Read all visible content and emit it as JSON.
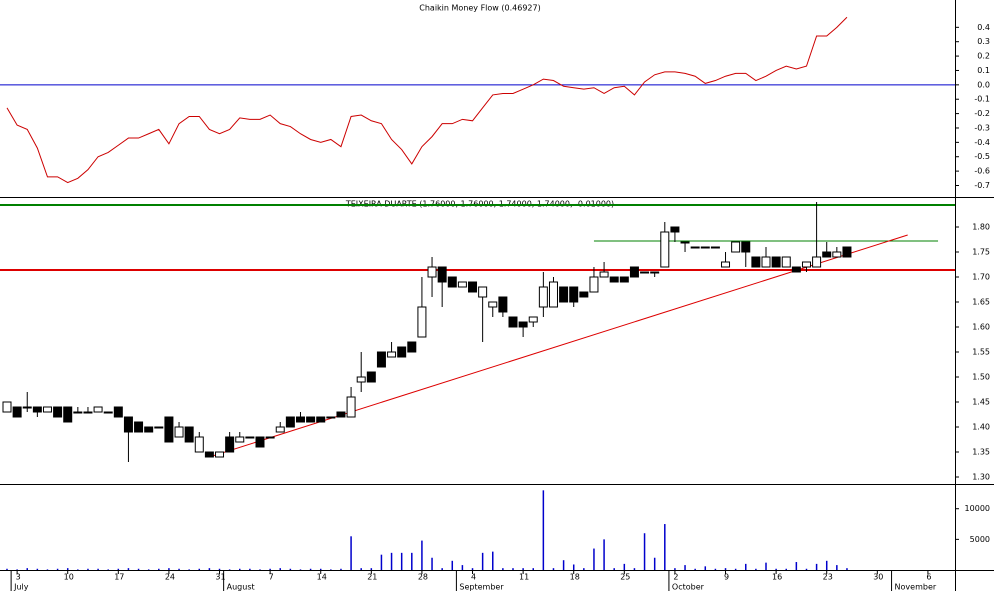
{
  "chart_data": [
    {
      "type": "line",
      "title": "Chaikin Money Flow (0.46927)",
      "color": "#cc0000",
      "values": [
        -0.16,
        -0.28,
        -0.31,
        -0.44,
        -0.64,
        -0.64,
        -0.68,
        -0.65,
        -0.59,
        -0.5,
        -0.47,
        -0.42,
        -0.37,
        -0.37,
        -0.34,
        -0.31,
        -0.41,
        -0.27,
        -0.22,
        -0.22,
        -0.31,
        -0.34,
        -0.31,
        -0.23,
        -0.24,
        -0.24,
        -0.21,
        -0.27,
        -0.29,
        -0.34,
        -0.38,
        -0.4,
        -0.38,
        -0.43,
        -0.22,
        -0.21,
        -0.25,
        -0.27,
        -0.38,
        -0.45,
        -0.55,
        -0.43,
        -0.36,
        -0.27,
        -0.27,
        -0.24,
        -0.25,
        -0.16,
        -0.07,
        -0.06,
        -0.06,
        -0.03,
        0.0,
        0.04,
        0.03,
        -0.01,
        -0.02,
        -0.03,
        -0.02,
        -0.06,
        -0.02,
        -0.01,
        -0.07,
        0.02,
        0.07,
        0.09,
        0.09,
        0.08,
        0.06,
        0.01,
        0.03,
        0.06,
        0.08,
        0.08,
        0.03,
        0.06,
        0.1,
        0.13,
        0.11,
        0.13,
        0.34,
        0.34,
        0.4,
        0.47,
        null,
        null,
        null,
        null,
        null,
        null,
        null,
        null,
        null,
        null
      ],
      "ylim": [
        -0.78,
        0.59
      ],
      "yticks": [
        0.4,
        0.3,
        0.2,
        0.1,
        {
          "value": 0,
          "label": "0.0"
        },
        -0.1,
        -0.2,
        -0.3,
        -0.4,
        -0.5,
        -0.6,
        -0.7
      ],
      "reference_lines": [
        {
          "value": 0,
          "color": "#0000cc"
        }
      ]
    },
    {
      "type": "candlestick",
      "title": "TEIXEIRA DUARTE (1.76000, 1.76000, 1.74000, 1.74000, -0.01000)",
      "up_color": "#ffffff",
      "down_color": "#000000",
      "open": [
        1.43,
        1.44,
        1.44,
        1.44,
        1.43,
        1.44,
        1.44,
        1.43,
        1.43,
        1.43,
        1.43,
        1.44,
        1.42,
        1.41,
        1.4,
        1.4,
        1.42,
        1.38,
        1.4,
        1.35,
        1.35,
        1.34,
        1.38,
        1.37,
        1.38,
        1.38,
        1.38,
        1.39,
        1.42,
        1.42,
        1.42,
        1.42,
        1.42,
        1.43,
        1.42,
        1.49,
        1.51,
        1.55,
        1.54,
        1.56,
        1.57,
        1.58,
        1.7,
        1.72,
        1.7,
        1.68,
        1.69,
        1.66,
        1.64,
        1.66,
        1.62,
        1.61,
        1.61,
        1.64,
        1.64,
        1.68,
        1.68,
        1.67,
        1.67,
        1.7,
        1.7,
        1.7,
        1.72,
        1.71,
        1.71,
        1.72,
        1.8,
        1.77,
        1.76,
        1.76,
        1.76,
        1.72,
        1.75,
        1.77,
        1.74,
        1.72,
        1.74,
        1.72,
        1.72,
        1.72,
        1.72,
        1.75,
        1.74,
        1.76,
        null,
        null,
        null,
        null,
        null,
        null,
        null,
        null,
        null,
        null
      ],
      "high": [
        1.45,
        1.44,
        1.47,
        1.44,
        1.44,
        1.44,
        1.44,
        1.44,
        1.44,
        1.44,
        1.43,
        1.44,
        1.42,
        1.41,
        1.4,
        1.4,
        1.42,
        1.41,
        1.4,
        1.39,
        1.35,
        1.35,
        1.39,
        1.39,
        1.38,
        1.38,
        1.38,
        1.41,
        1.42,
        1.43,
        1.42,
        1.42,
        1.42,
        1.43,
        1.48,
        1.55,
        1.51,
        1.55,
        1.57,
        1.56,
        1.57,
        1.7,
        1.74,
        1.72,
        1.7,
        1.69,
        1.69,
        1.68,
        1.65,
        1.66,
        1.62,
        1.61,
        1.62,
        1.71,
        1.7,
        1.68,
        1.68,
        1.67,
        1.72,
        1.73,
        1.7,
        1.7,
        1.72,
        1.71,
        1.71,
        1.81,
        1.8,
        1.77,
        1.76,
        1.76,
        1.76,
        1.75,
        1.77,
        1.77,
        1.74,
        1.76,
        1.74,
        1.74,
        1.72,
        1.73,
        1.85,
        1.77,
        1.76,
        1.76,
        null,
        null,
        null,
        null,
        null,
        null,
        null,
        null,
        null,
        null
      ],
      "low": [
        1.43,
        1.42,
        1.43,
        1.42,
        1.43,
        1.42,
        1.41,
        1.43,
        1.43,
        1.43,
        1.43,
        1.42,
        1.33,
        1.39,
        1.39,
        1.4,
        1.37,
        1.38,
        1.37,
        1.35,
        1.34,
        1.34,
        1.35,
        1.37,
        1.38,
        1.36,
        1.38,
        1.39,
        1.4,
        1.41,
        1.41,
        1.41,
        1.42,
        1.42,
        1.42,
        1.47,
        1.49,
        1.52,
        1.54,
        1.54,
        1.55,
        1.58,
        1.66,
        1.64,
        1.68,
        1.68,
        1.67,
        1.57,
        1.62,
        1.62,
        1.6,
        1.58,
        1.6,
        1.62,
        1.64,
        1.65,
        1.64,
        1.66,
        1.67,
        1.7,
        1.69,
        1.69,
        1.7,
        1.71,
        1.7,
        1.72,
        1.77,
        1.75,
        1.76,
        1.76,
        1.76,
        1.72,
        1.75,
        1.72,
        1.72,
        1.72,
        1.72,
        1.72,
        1.71,
        1.71,
        1.72,
        1.74,
        1.74,
        1.74,
        null,
        null,
        null,
        null,
        null,
        null,
        null,
        null,
        null,
        null
      ],
      "close": [
        1.45,
        1.42,
        1.44,
        1.43,
        1.44,
        1.42,
        1.41,
        1.43,
        1.43,
        1.44,
        1.43,
        1.42,
        1.39,
        1.39,
        1.39,
        1.4,
        1.37,
        1.4,
        1.37,
        1.38,
        1.34,
        1.35,
        1.35,
        1.38,
        1.38,
        1.36,
        1.38,
        1.4,
        1.4,
        1.41,
        1.41,
        1.41,
        1.42,
        1.42,
        1.46,
        1.5,
        1.49,
        1.52,
        1.55,
        1.54,
        1.55,
        1.64,
        1.72,
        1.69,
        1.68,
        1.69,
        1.67,
        1.68,
        1.65,
        1.63,
        1.6,
        1.6,
        1.62,
        1.68,
        1.69,
        1.65,
        1.65,
        1.66,
        1.7,
        1.71,
        1.69,
        1.69,
        1.7,
        1.71,
        1.71,
        1.79,
        1.79,
        1.77,
        1.76,
        1.76,
        1.76,
        1.73,
        1.77,
        1.75,
        1.72,
        1.74,
        1.72,
        1.74,
        1.71,
        1.73,
        1.74,
        1.74,
        1.75,
        1.74,
        null,
        null,
        null,
        null,
        null,
        null,
        null,
        null,
        null,
        null
      ],
      "ylim": [
        1.288,
        1.856
      ],
      "yticks": [
        {
          "value": 1.3,
          "label": "1.30"
        },
        1.35,
        {
          "value": 1.4,
          "label": "1.40"
        },
        1.45,
        {
          "value": 1.5,
          "label": "1.50"
        },
        1.55,
        {
          "value": 1.6,
          "label": "1.60"
        },
        1.65,
        {
          "value": 1.7,
          "label": "1.70"
        },
        1.75,
        {
          "value": 1.8,
          "label": "1.80"
        }
      ],
      "reference_lines": [
        {
          "value": 1.844,
          "color": "#008000"
        },
        {
          "value": 1.714,
          "color": "#dd0000"
        }
      ],
      "segment_line": {
        "x": [
          "09-20",
          "11-07"
        ],
        "value": 1.772,
        "color": "#008000"
      },
      "trend_line": {
        "x": [
          "07-28",
          "11-02"
        ],
        "values": [
          1.34,
          1.784
        ],
        "color": "#dd0000"
      }
    },
    {
      "type": "volume",
      "color": "#0000cc",
      "x": [
        "06-30",
        "07-03",
        "07-04",
        "07-05",
        "07-06",
        "07-07",
        "07-10",
        "07-11",
        "07-12",
        "07-13",
        "07-14",
        "07-17",
        "07-18",
        "07-19",
        "07-20",
        "07-21",
        "07-24",
        "07-25",
        "07-26",
        "07-27",
        "07-28",
        "07-31",
        "08-01",
        "08-02",
        "08-03",
        "08-04",
        "08-07",
        "08-08",
        "08-09",
        "08-10",
        "08-11",
        "08-14",
        "08-15",
        "08-16",
        "08-17",
        "08-18",
        "08-21",
        "08-22",
        "08-23",
        "08-24",
        "08-25",
        "08-28",
        "08-29",
        "08-30",
        "08-31",
        "09-01",
        "09-04",
        "09-05",
        "09-06",
        "09-07",
        "09-08",
        "09-11",
        "09-12",
        "09-13",
        "09-14",
        "09-15",
        "09-18",
        "09-19",
        "09-20",
        "09-21",
        "09-22",
        "09-25",
        "09-26",
        "09-27",
        "09-28",
        "09-29",
        "10-02",
        "10-03",
        "10-04",
        "10-05",
        "10-06",
        "10-09",
        "10-10",
        "10-11",
        "10-12",
        "10-13",
        "10-16",
        "10-17",
        "10-18",
        "10-19",
        "10-20",
        "10-23",
        "10-24",
        "10-25",
        "10-26",
        "10-27",
        "10-30",
        "10-31",
        "11-01",
        "11-02",
        "11-03",
        "11-06",
        "11-07",
        "11-08"
      ],
      "values": [
        200,
        100,
        300,
        200,
        100,
        200,
        300,
        100,
        200,
        200,
        100,
        200,
        300,
        200,
        100,
        200,
        300,
        200,
        100,
        200,
        300,
        200,
        100,
        200,
        200,
        100,
        200,
        300,
        200,
        100,
        200,
        200,
        100,
        200,
        5500,
        300,
        300,
        2500,
        2800,
        2800,
        2800,
        4800,
        2000,
        300,
        1500,
        800,
        300,
        2800,
        3000,
        300,
        300,
        300,
        300,
        13000,
        300,
        1600,
        900,
        300,
        3500,
        5000,
        300,
        1000,
        300,
        6000,
        2000,
        7500,
        300,
        800,
        200,
        600,
        200,
        300,
        200,
        1000,
        200,
        1200,
        200,
        200,
        1300,
        200,
        1000,
        1500,
        800,
        300,
        null,
        null,
        null,
        null,
        null,
        null,
        null,
        null,
        null,
        null
      ],
      "ylim": [
        0,
        13870
      ],
      "yticks": [
        5000,
        10000
      ],
      "xticks": [
        {
          "value": "07-03",
          "label": "3"
        },
        {
          "value": "07-10",
          "label": "10"
        },
        {
          "value": "07-17",
          "label": "17"
        },
        {
          "value": "07-24",
          "label": "24"
        },
        {
          "value": "07-31",
          "label": "31"
        },
        {
          "value": "08-07",
          "label": "7"
        },
        {
          "value": "08-14",
          "label": "14"
        },
        {
          "value": "08-21",
          "label": "21"
        },
        {
          "value": "08-28",
          "label": "28"
        },
        {
          "value": "09-04",
          "label": "4"
        },
        {
          "value": "09-11",
          "label": "11"
        },
        {
          "value": "09-18",
          "label": "18"
        },
        {
          "value": "09-25",
          "label": "25"
        },
        {
          "value": "10-02",
          "label": "2"
        },
        {
          "value": "10-09",
          "label": "9"
        },
        {
          "value": "10-16",
          "label": "16"
        },
        {
          "value": "10-23",
          "label": "23"
        },
        {
          "value": "10-30",
          "label": "30"
        },
        {
          "value": "11-06",
          "label": "6"
        }
      ],
      "month_ticks": [
        {
          "value": "07-03",
          "label": "July"
        },
        {
          "value": "08-01",
          "label": "August"
        },
        {
          "value": "09-01",
          "label": "September"
        },
        {
          "value": "10-02",
          "label": "October"
        },
        {
          "value": "11-01",
          "label": "November"
        }
      ]
    }
  ]
}
